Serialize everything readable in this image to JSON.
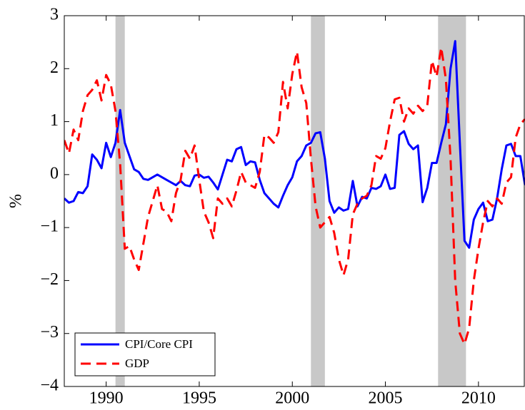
{
  "chart_data": {
    "type": "line",
    "y_label": "%",
    "xlim": [
      1987.75,
      2012.5
    ],
    "xticks": [
      1990,
      1995,
      2000,
      2005,
      2010
    ],
    "ylim": [
      -4,
      3
    ],
    "yticks": [
      {
        "value": -4,
        "label": "−4"
      },
      {
        "value": -3,
        "label": "−3"
      },
      {
        "value": -2,
        "label": "−2"
      },
      {
        "value": -1,
        "label": "−1"
      },
      0,
      1,
      2,
      3
    ],
    "legend": "lower left",
    "shaded_periods": [
      [
        1990.5,
        1991.0
      ],
      [
        2001.0,
        2001.75
      ],
      [
        2007.83,
        2009.33
      ]
    ],
    "shade_color": "#c8c8c8",
    "x": [
      1987.75,
      1988,
      1988.25,
      1988.5,
      1988.75,
      1989,
      1989.25,
      1989.5,
      1989.75,
      1990,
      1990.25,
      1990.5,
      1990.75,
      1991,
      1991.25,
      1991.5,
      1991.75,
      1992,
      1992.25,
      1992.5,
      1992.75,
      1993,
      1993.25,
      1993.5,
      1993.75,
      1994,
      1994.25,
      1994.5,
      1994.75,
      1995,
      1995.25,
      1995.5,
      1995.75,
      1996,
      1996.25,
      1996.5,
      1996.75,
      1997,
      1997.25,
      1997.5,
      1997.75,
      1998,
      1998.25,
      1998.5,
      1998.75,
      1999,
      1999.25,
      1999.5,
      1999.75,
      2000,
      2000.25,
      2000.5,
      2000.75,
      2001,
      2001.25,
      2001.5,
      2001.75,
      2002,
      2002.25,
      2002.5,
      2002.75,
      2003,
      2003.25,
      2003.5,
      2003.75,
      2004,
      2004.25,
      2004.5,
      2004.75,
      2005,
      2005.25,
      2005.5,
      2005.75,
      2006,
      2006.25,
      2006.5,
      2006.75,
      2007,
      2007.25,
      2007.5,
      2007.75,
      2008,
      2008.25,
      2008.5,
      2008.75,
      2009,
      2009.25,
      2009.5,
      2009.75,
      2010,
      2010.25,
      2010.5,
      2010.75,
      2011,
      2011.25,
      2011.5,
      2011.75,
      2012,
      2012.25,
      2012.5
    ],
    "series": [
      {
        "name": "CPI/Core CPI",
        "color": "#0000ff",
        "dash": "solid",
        "values": [
          -0.45,
          -0.53,
          -0.5,
          -0.33,
          -0.35,
          -0.22,
          0.38,
          0.28,
          0.12,
          0.6,
          0.33,
          0.6,
          1.22,
          0.6,
          0.35,
          0.1,
          0.05,
          -0.08,
          -0.1,
          -0.05,
          0,
          -0.05,
          -0.1,
          -0.15,
          -0.2,
          -0.12,
          -0.2,
          -0.22,
          -0.02,
          0,
          -0.06,
          -0.04,
          -0.15,
          -0.28,
          0,
          0.28,
          0.25,
          0.48,
          0.52,
          0.18,
          0.25,
          0.23,
          -0.1,
          -0.35,
          -0.45,
          -0.55,
          -0.62,
          -0.4,
          -0.2,
          -0.05,
          0.25,
          0.35,
          0.55,
          0.6,
          0.78,
          0.8,
          0.3,
          -0.5,
          -0.72,
          -0.62,
          -0.68,
          -0.65,
          -0.12,
          -0.6,
          -0.42,
          -0.45,
          -0.25,
          -0.27,
          -0.22,
          0,
          -0.27,
          -0.25,
          0.75,
          0.82,
          0.58,
          0.48,
          0.55,
          -0.52,
          -0.25,
          0.22,
          0.22,
          0.6,
          0.95,
          2.0,
          2.52,
          0.6,
          -1.25,
          -1.38,
          -0.85,
          -0.65,
          -0.53,
          -0.88,
          -0.85,
          -0.45,
          0.1,
          0.55,
          0.58,
          0.35,
          0.35,
          -0.2
        ]
      },
      {
        "name": "GDP",
        "color": "#ff0000",
        "dash": "dashed",
        "values": [
          0.65,
          0.4,
          0.85,
          0.65,
          1.2,
          1.5,
          1.6,
          1.78,
          1.4,
          1.88,
          1.7,
          1.2,
          0.2,
          -1.4,
          -1.35,
          -1.6,
          -1.8,
          -1.3,
          -0.8,
          -0.5,
          -0.2,
          -0.65,
          -0.7,
          -0.88,
          -0.35,
          -0.1,
          0.45,
          0.3,
          0.55,
          -0.1,
          -0.7,
          -0.9,
          -1.2,
          -0.45,
          -0.55,
          -0.45,
          -0.6,
          -0.3,
          0.05,
          -0.15,
          -0.2,
          -0.25,
          0.05,
          0.75,
          0.7,
          0.6,
          0.8,
          1.75,
          1.25,
          1.9,
          2.32,
          1.65,
          1.35,
          0.3,
          -0.6,
          -1.0,
          -0.9,
          -0.8,
          -1.1,
          -1.6,
          -1.9,
          -1.6,
          -0.75,
          -0.55,
          -0.45,
          -0.4,
          -0.2,
          0.35,
          0.3,
          0.5,
          1.0,
          1.42,
          1.45,
          1.0,
          1.25,
          1.15,
          1.3,
          1.2,
          1.3,
          2.15,
          1.85,
          2.4,
          1.8,
          0.3,
          -2.0,
          -3.0,
          -3.2,
          -2.9,
          -2.0,
          -1.4,
          -0.9,
          -0.5,
          -0.6,
          -0.45,
          -0.55,
          -0.15,
          -0.05,
          0.7,
          0.95,
          1.05
        ]
      }
    ]
  }
}
